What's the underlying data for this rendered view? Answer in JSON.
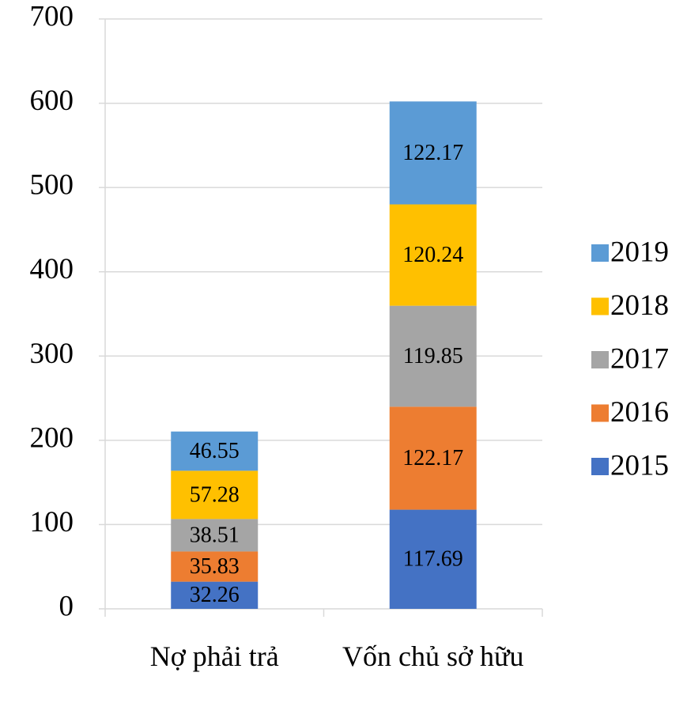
{
  "chart_data": {
    "type": "stacked_bar",
    "categories": [
      "Nợ phải trả",
      "Vốn chủ sở hữu"
    ],
    "series": [
      {
        "name": "2015",
        "color": "#4472c4",
        "values": [
          32.26,
          117.69
        ]
      },
      {
        "name": "2016",
        "color": "#ed7d31",
        "values": [
          35.83,
          122.17
        ]
      },
      {
        "name": "2017",
        "color": "#a5a5a5",
        "values": [
          38.51,
          119.85
        ]
      },
      {
        "name": "2018",
        "color": "#ffc000",
        "values": [
          57.28,
          120.24
        ]
      },
      {
        "name": "2019",
        "color": "#5b9bd5",
        "values": [
          46.55,
          122.17
        ]
      }
    ],
    "ylim": [
      0,
      700
    ],
    "yticks": [
      0,
      100,
      200,
      300,
      400,
      500,
      600,
      700
    ],
    "grid": true,
    "legend": "right"
  }
}
